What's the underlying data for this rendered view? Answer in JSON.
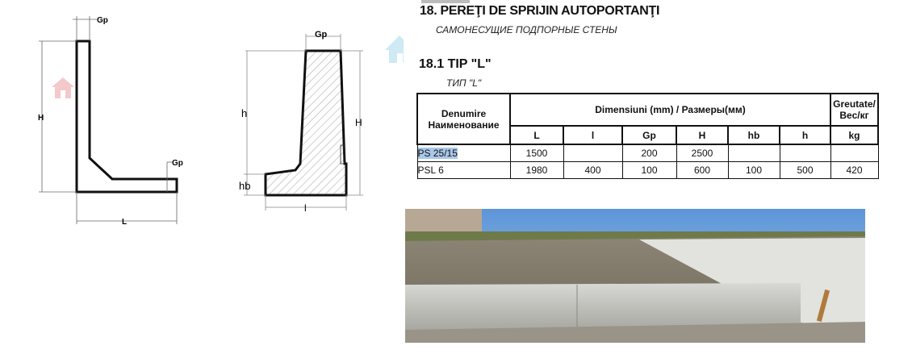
{
  "section": {
    "title": "18. PEREŢI DE SPRIJIN AUTOPORTANŢI",
    "subtitle": "САМОНЕСУЩИЕ ПОДПОРНЫЕ СТЕНЫ"
  },
  "subsection": {
    "title": "18.1 TIP \"L\"",
    "subtitle": "ТИП \"L\""
  },
  "diagram_left": {
    "labels": {
      "gp_top": "Gp",
      "h": "H",
      "gp_foot": "Gp",
      "l": "L"
    }
  },
  "diagram_right": {
    "labels": {
      "gp": "Gp",
      "h_small": "h",
      "h": "H",
      "hb": "hb",
      "l": "l"
    }
  },
  "table": {
    "name_header": [
      "Denumire",
      "Наименование"
    ],
    "dims_header": "Dimensiuni (mm) / Размеры(мм)",
    "weight_header": [
      "Greutate/",
      "Вес/кг"
    ],
    "columns": [
      "L",
      "l",
      "Gp",
      "H",
      "hb",
      "h",
      "kg"
    ],
    "rows": [
      {
        "name": "PS 25/15",
        "selected": true,
        "values": [
          "1500",
          "",
          "200",
          "2500",
          "",
          "",
          ""
        ]
      },
      {
        "name": "PSL 6",
        "selected": false,
        "values": [
          "1980",
          "400",
          "100",
          "600",
          "100",
          "500",
          "420"
        ]
      }
    ]
  },
  "colors": {
    "selection": "#a9c8e8",
    "watermark_blue": "#cdeaf5",
    "watermark_red": "#f3c9cc"
  }
}
